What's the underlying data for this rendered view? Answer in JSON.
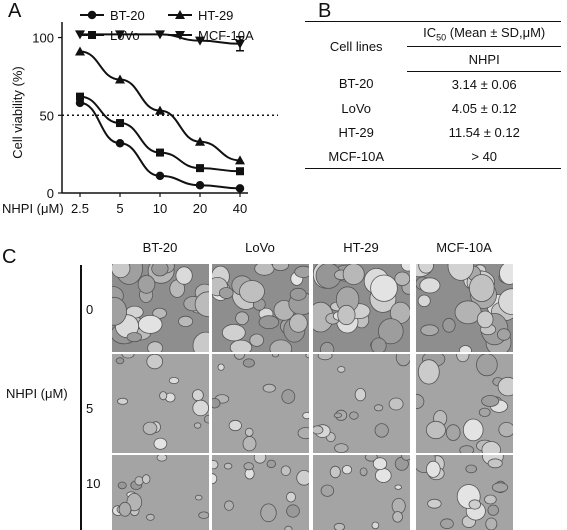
{
  "panels": {
    "a": "A",
    "b": "B",
    "c": "C"
  },
  "chart_data": {
    "type": "line",
    "xlabel": "NHPI (μM)",
    "ylabel": "Cell viability (%)",
    "x": [
      "2.5",
      "5",
      "10",
      "20",
      "40"
    ],
    "yticks": [
      "0",
      "50",
      "100"
    ],
    "ylim": [
      0,
      110
    ],
    "reference_line": 50,
    "legend_position": "top",
    "series": [
      {
        "name": "BT-20",
        "marker": "circle",
        "values": [
          58,
          32,
          11,
          5,
          3
        ]
      },
      {
        "name": "LoVo",
        "marker": "square",
        "values": [
          62,
          45,
          26,
          16,
          14
        ]
      },
      {
        "name": "HT-29",
        "marker": "triangle-up",
        "values": [
          91,
          73,
          53,
          33,
          21
        ]
      },
      {
        "name": "MCF-10A",
        "marker": "triangle-down",
        "values": [
          102,
          102,
          102,
          98,
          96
        ]
      }
    ]
  },
  "table": {
    "header_col": "Cell lines",
    "header_main": "IC",
    "header_sub": "50",
    "header_rest": " (Mean ± SD,μM)",
    "compound": "NHPI",
    "rows": [
      {
        "cell_line": "BT-20",
        "value": "3.14 ± 0.06"
      },
      {
        "cell_line": "LoVo",
        "value": "4.05 ± 0.12"
      },
      {
        "cell_line": "HT-29",
        "value": "11.54 ± 0.12"
      },
      {
        "cell_line": "MCF-10A",
        "value": "> 40"
      }
    ]
  },
  "micrographs": {
    "columns": [
      "BT-20",
      "LoVo",
      "HT-29",
      "MCF-10A"
    ],
    "rows": [
      "0",
      "5",
      "10"
    ],
    "axis_label": "NHPI (μM)"
  }
}
